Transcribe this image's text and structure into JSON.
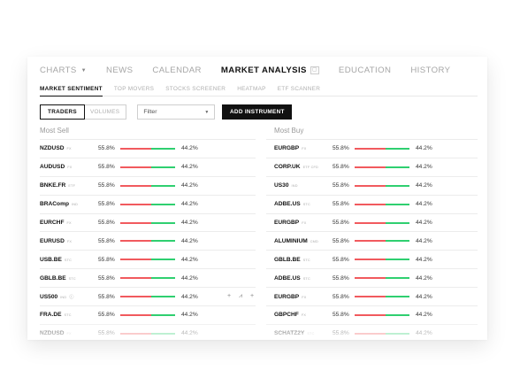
{
  "top_nav": [
    {
      "label": "CHARTS",
      "active": false,
      "dropdown": true
    },
    {
      "label": "NEWS",
      "active": false
    },
    {
      "label": "CALENDAR",
      "active": false
    },
    {
      "label": "MARKET ANALYSIS",
      "active": true
    },
    {
      "label": "EDUCATION",
      "active": false
    },
    {
      "label": "HISTORY",
      "active": false
    }
  ],
  "sub_nav": [
    {
      "label": "MARKET SENTIMENT",
      "active": true
    },
    {
      "label": "TOP MOVERS",
      "active": false
    },
    {
      "label": "STOCKS SCREENER",
      "active": false
    },
    {
      "label": "HEATMAP",
      "active": false
    },
    {
      "label": "ETF SCANNER",
      "active": false
    }
  ],
  "controls": {
    "toggle": [
      "TRADERS",
      "VOLUMES"
    ],
    "filter_label": "Filter",
    "add_label": "ADD INSTRUMENT"
  },
  "most_sell": {
    "title": "Most Sell",
    "rows": [
      {
        "symbol": "NZDUSD",
        "tag": "FX",
        "sell": "55.8%",
        "buy": "44.2%"
      },
      {
        "symbol": "AUDUSD",
        "tag": "FX",
        "sell": "55.8%",
        "buy": "44.2%"
      },
      {
        "symbol": "BNKE.FR",
        "tag": "ETF",
        "sell": "55.8%",
        "buy": "44.2%"
      },
      {
        "symbol": "BRAComp",
        "tag": "IND",
        "sell": "55.8%",
        "buy": "44.2%"
      },
      {
        "symbol": "EURCHF",
        "tag": "FX",
        "sell": "55.8%",
        "buy": "44.2%"
      },
      {
        "symbol": "EURUSD",
        "tag": "FX",
        "sell": "55.8%",
        "buy": "44.2%"
      },
      {
        "symbol": "USB.BE",
        "tag": "STC",
        "sell": "55.8%",
        "buy": "44.2%"
      },
      {
        "symbol": "GBLB.BE",
        "tag": "STC",
        "sell": "55.8%",
        "buy": "44.2%"
      },
      {
        "symbol": "US500",
        "tag": "IND",
        "sell": "55.8%",
        "buy": "44.2%",
        "hover": true
      },
      {
        "symbol": "FRA.DE",
        "tag": "STC",
        "sell": "55.8%",
        "buy": "44.2%"
      },
      {
        "symbol": "NZDUSD",
        "tag": "FX",
        "sell": "55.8%",
        "buy": "44.2%"
      }
    ]
  },
  "most_buy": {
    "title": "Most Buy",
    "rows": [
      {
        "symbol": "EURGBP",
        "tag": "FX",
        "sell": "55.8%",
        "buy": "44.2%"
      },
      {
        "symbol": "CORP.UK",
        "tag": "ETF CFD",
        "sell": "55.8%",
        "buy": "44.2%"
      },
      {
        "symbol": "US30",
        "tag": "IND",
        "sell": "55.8%",
        "buy": "44.2%"
      },
      {
        "symbol": "ADBE.US",
        "tag": "STC",
        "sell": "55.8%",
        "buy": "44.2%"
      },
      {
        "symbol": "EURGBP",
        "tag": "FX",
        "sell": "55.8%",
        "buy": "44.2%"
      },
      {
        "symbol": "ALUMINIUM",
        "tag": "CMD",
        "sell": "55.8%",
        "buy": "44.2%"
      },
      {
        "symbol": "GBLB.BE",
        "tag": "STC",
        "sell": "55.8%",
        "buy": "44.2%"
      },
      {
        "symbol": "ADBE.US",
        "tag": "STC",
        "sell": "55.8%",
        "buy": "44.2%"
      },
      {
        "symbol": "EURGBP",
        "tag": "FX",
        "sell": "55.8%",
        "buy": "44.2%"
      },
      {
        "symbol": "GBPCHF",
        "tag": "FX",
        "sell": "55.8%",
        "buy": "44.2%"
      },
      {
        "symbol": "SCHATZ2Y",
        "tag": "STC",
        "sell": "55.8%",
        "buy": "44.2%"
      }
    ]
  },
  "sell_fraction": 0.558,
  "row_actions": [
    "+",
    "chart-icon",
    "+"
  ],
  "colors": {
    "sell": "#f15a5e",
    "buy": "#2fcf70",
    "accent": "#111111"
  }
}
